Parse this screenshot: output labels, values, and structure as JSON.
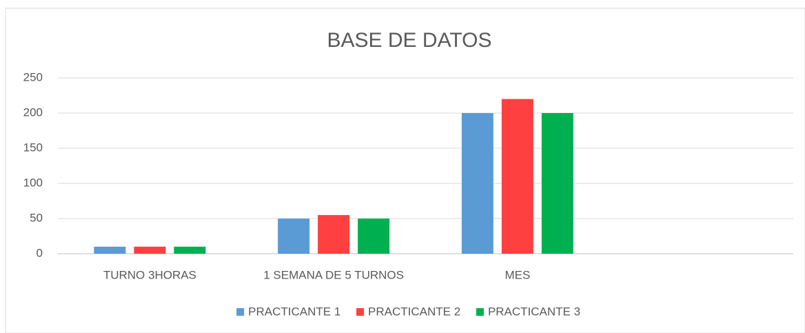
{
  "chart_data": {
    "type": "bar",
    "title": "BASE DE DATOS",
    "categories": [
      "TURNO 3HORAS",
      "1 SEMANA DE 5 TURNOS",
      "MES",
      null
    ],
    "series": [
      {
        "name": "PRACTICANTE 1",
        "color": "#5b9bd5",
        "values": [
          10,
          50,
          200,
          null
        ]
      },
      {
        "name": "PRACTICANTE 2",
        "color": "#ff4040",
        "values": [
          10,
          55,
          220,
          null
        ]
      },
      {
        "name": "PRACTICANTE 3",
        "color": "#00b050",
        "values": [
          10,
          50,
          200,
          null
        ]
      }
    ],
    "ylim": [
      0,
      250
    ],
    "yticks": [
      0,
      50,
      100,
      150,
      200,
      250
    ],
    "grid": true,
    "legend": "bottom"
  }
}
